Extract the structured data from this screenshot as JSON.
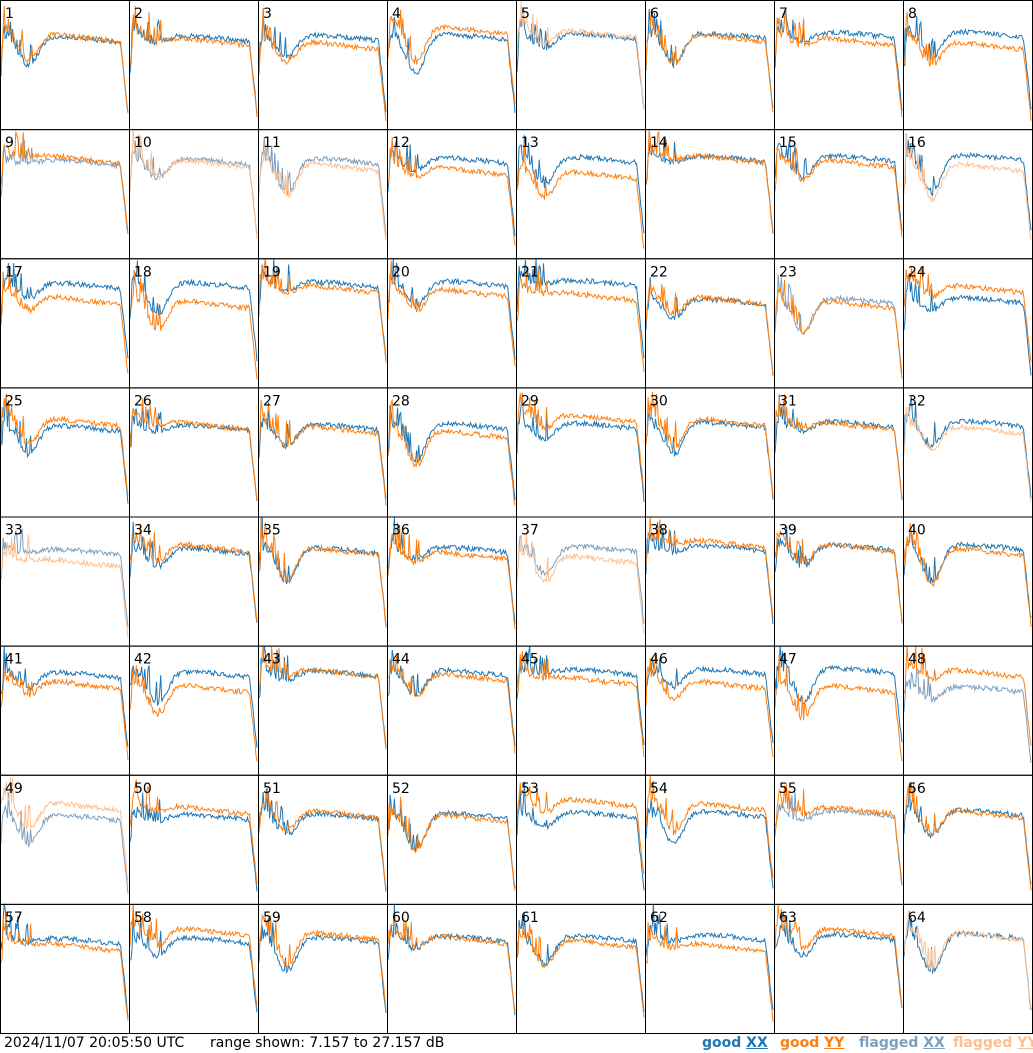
{
  "chart_data": {
    "type": "line",
    "layout": "8x8 grid of small multiples",
    "panels": [
      "1",
      "2",
      "3",
      "4",
      "5",
      "6",
      "7",
      "8",
      "9",
      "10",
      "11",
      "12",
      "13",
      "14",
      "15",
      "16",
      "17",
      "18",
      "19",
      "20",
      "21",
      "22",
      "23",
      "24",
      "25",
      "26",
      "27",
      "28",
      "29",
      "30",
      "31",
      "32",
      "33",
      "34",
      "35",
      "36",
      "37",
      "38",
      "39",
      "40",
      "41",
      "42",
      "43",
      "44",
      "45",
      "46",
      "47",
      "48",
      "49",
      "50",
      "51",
      "52",
      "53",
      "54",
      "55",
      "56",
      "57",
      "58",
      "59",
      "60",
      "61",
      "62",
      "63",
      "64"
    ],
    "ylim": [
      7.157,
      27.157
    ],
    "yunit": "dB",
    "series": [
      {
        "name": "good XX",
        "color": "#1f77b4"
      },
      {
        "name": "good YY",
        "color": "#ff7f0e"
      },
      {
        "name": "flagged XX",
        "color": "#7f9fbf"
      },
      {
        "name": "flagged YY",
        "color": "#ffbf8f"
      }
    ],
    "legend_position": "bottom-right",
    "grid": false,
    "flagged_xx_panels": [
      "9",
      "10",
      "11",
      "23",
      "33",
      "37",
      "48",
      "49",
      "55"
    ],
    "flagged_yy_panels": [
      "5",
      "10",
      "11",
      "16",
      "32",
      "33",
      "37",
      "49",
      "64"
    ]
  },
  "footer": {
    "timestamp": "2024/11/07 20:05:50 UTC",
    "range_text": "range shown: 7.157 to 27.157 dB"
  },
  "legend": {
    "good_xx": {
      "word": "good",
      "pol": "XX",
      "color": "#1f77b4"
    },
    "good_yy": {
      "word": "good",
      "pol": "YY",
      "color": "#ff7f0e"
    },
    "flagged_xx": {
      "word": "flagged",
      "pol": "XX",
      "color": "#7f9fbf"
    },
    "flagged_yy": {
      "word": "flagged",
      "pol": "YY",
      "color": "#ffbf8f"
    }
  }
}
